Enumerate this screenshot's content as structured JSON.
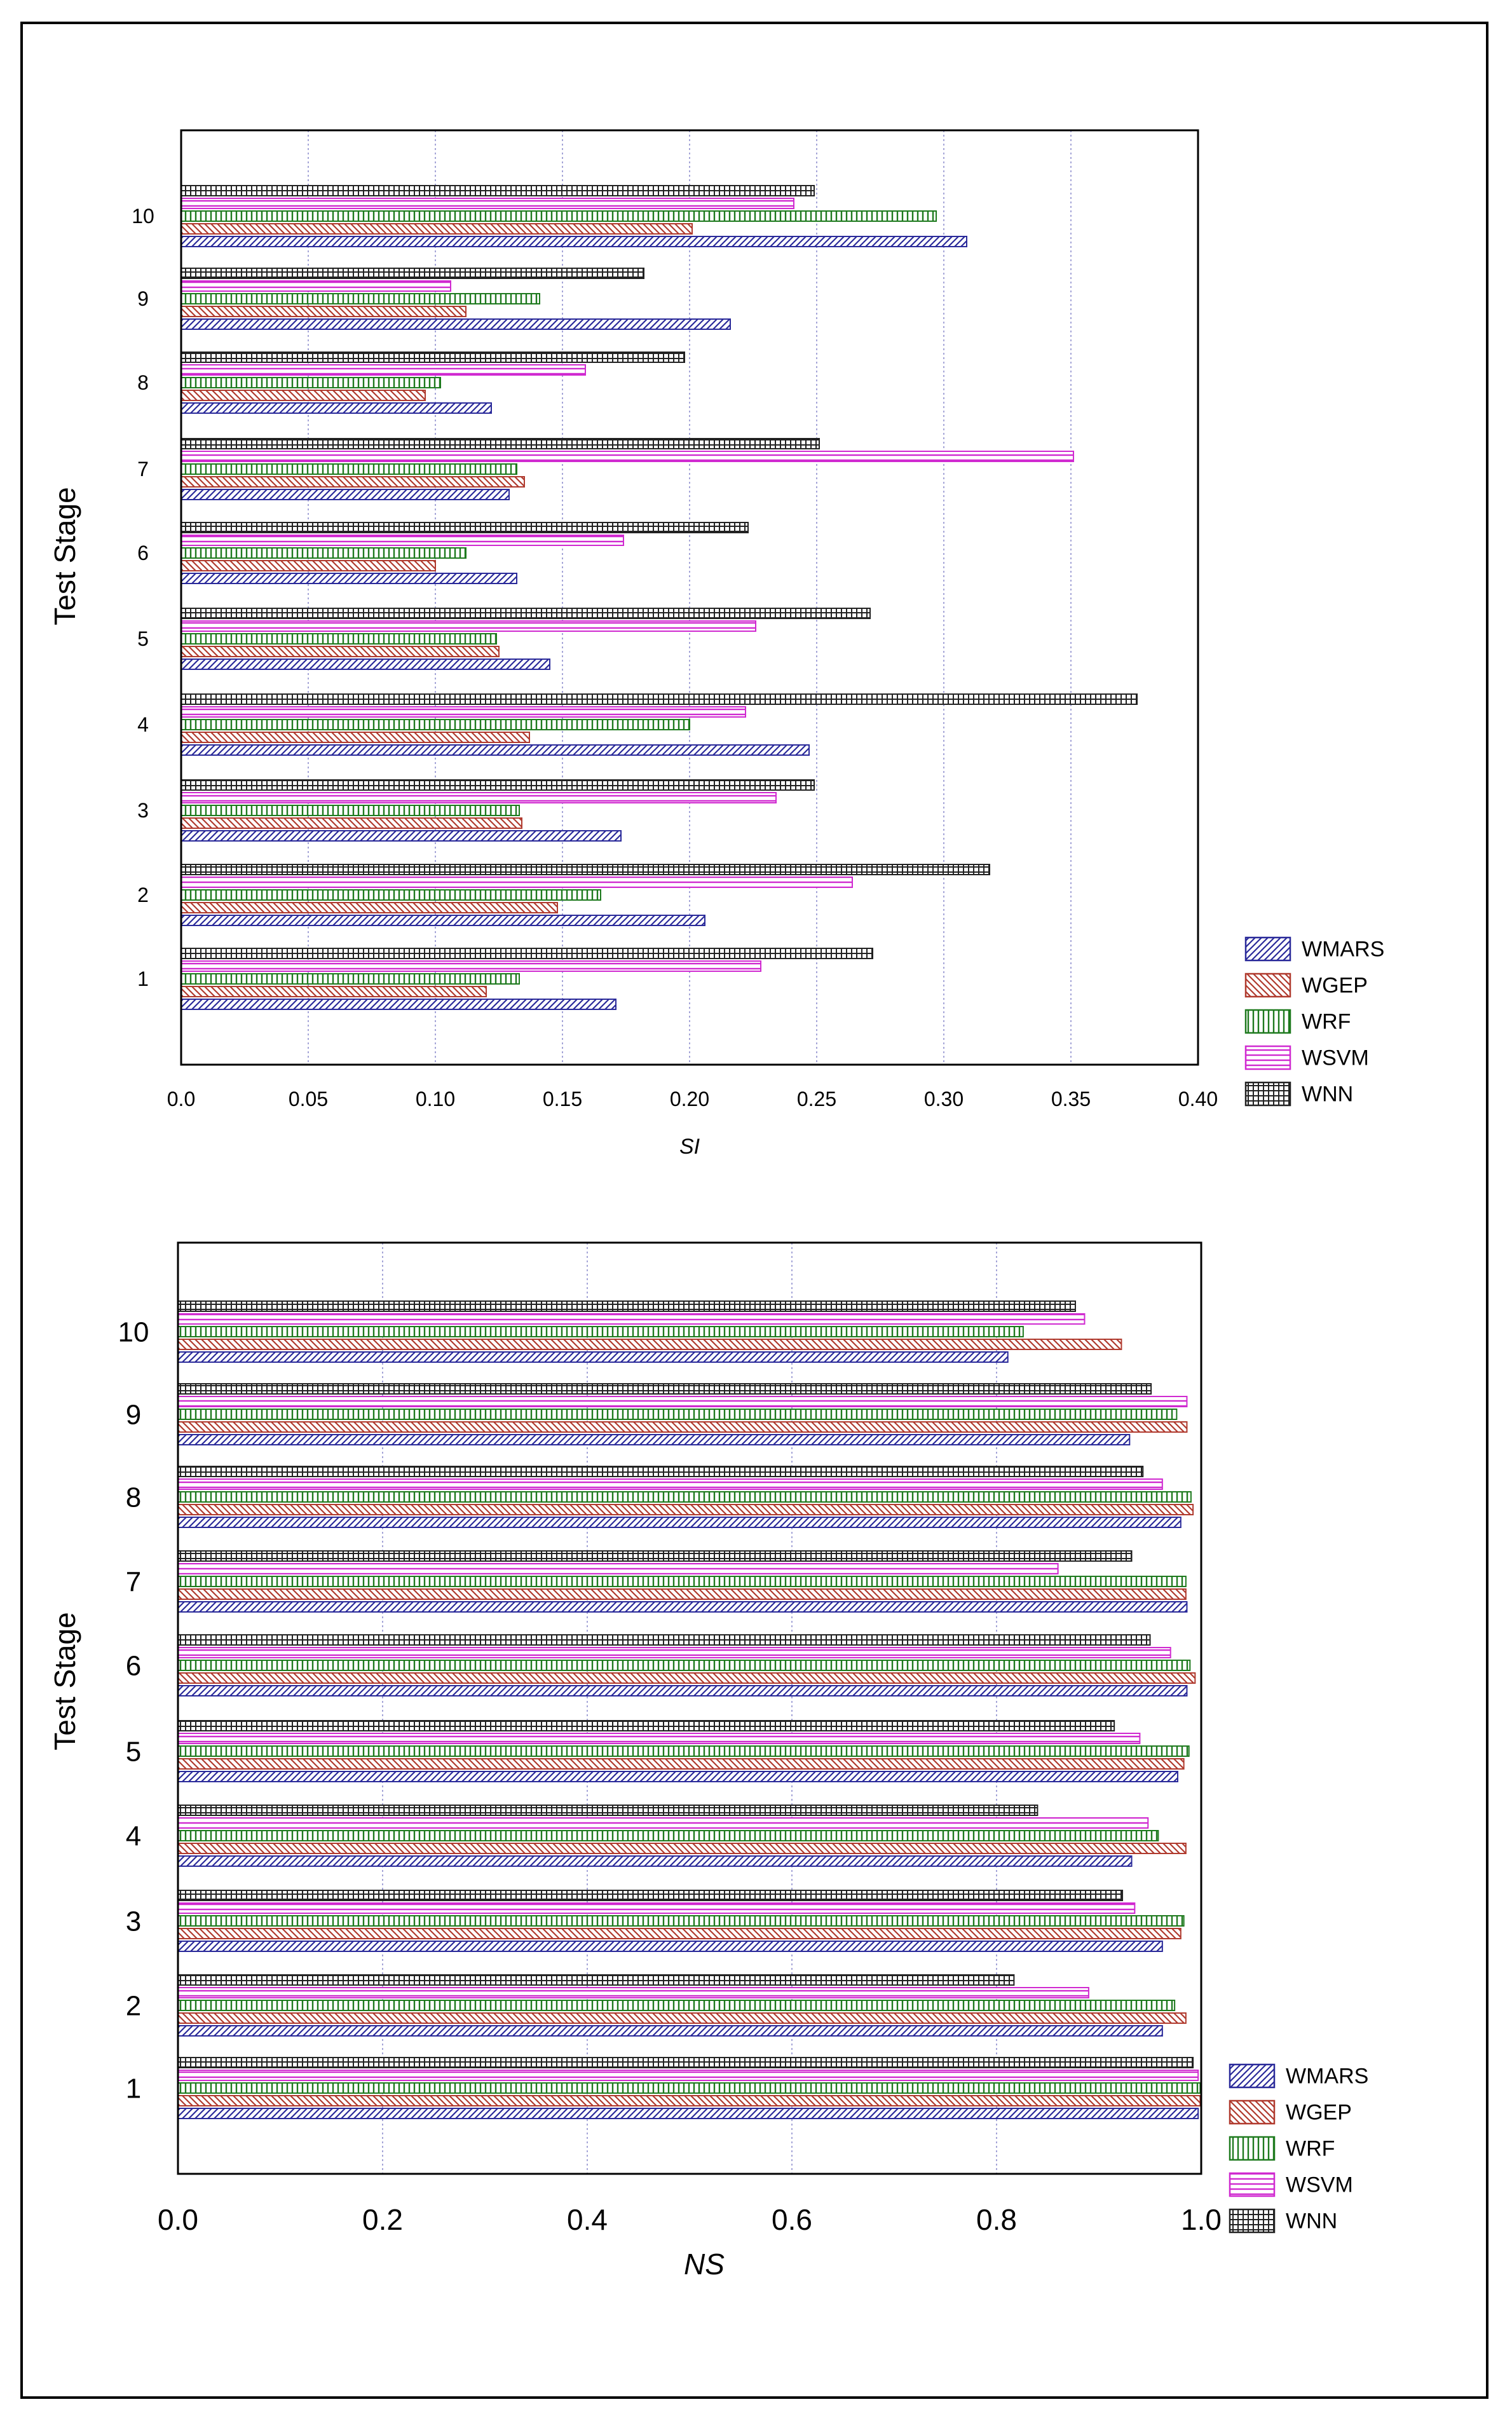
{
  "chart_data": [
    {
      "type": "bar",
      "orientation": "horizontal",
      "title": "",
      "xlabel": "SI",
      "ylabel": "Test Stage",
      "xlim": [
        0,
        0.4
      ],
      "xticks": [
        "0.0",
        "0.05",
        "0.10",
        "0.15",
        "0.20",
        "0.25",
        "0.30",
        "0.35",
        "0.40"
      ],
      "categories": [
        "1",
        "2",
        "3",
        "4",
        "5",
        "6",
        "7",
        "8",
        "9",
        "10"
      ],
      "grid": true,
      "legend_position": "bottom-right",
      "series": [
        {
          "name": "WMARS",
          "values": [
            0.171,
            0.206,
            0.173,
            0.247,
            0.145,
            0.132,
            0.129,
            0.122,
            0.216,
            0.309
          ]
        },
        {
          "name": "WGEP",
          "values": [
            0.12,
            0.148,
            0.134,
            0.137,
            0.125,
            0.1,
            0.135,
            0.096,
            0.112,
            0.201
          ]
        },
        {
          "name": "WRF",
          "values": [
            0.133,
            0.165,
            0.133,
            0.2,
            0.124,
            0.112,
            0.132,
            0.102,
            0.141,
            0.297
          ]
        },
        {
          "name": "WSVM",
          "values": [
            0.228,
            0.264,
            0.234,
            0.222,
            0.226,
            0.174,
            0.351,
            0.159,
            0.106,
            0.241
          ]
        },
        {
          "name": "WNN",
          "values": [
            0.272,
            0.318,
            0.249,
            0.376,
            0.271,
            0.223,
            0.251,
            0.198,
            0.182,
            0.249
          ]
        }
      ]
    },
    {
      "type": "bar",
      "orientation": "horizontal",
      "title": "",
      "xlabel": "NS",
      "ylabel": "Test Stage",
      "xlim": [
        0,
        1
      ],
      "xticks": [
        "0.0",
        "0.2",
        "0.4",
        "0.6",
        "0.8",
        "1.0"
      ],
      "categories": [
        "1",
        "2",
        "3",
        "4",
        "5",
        "6",
        "7",
        "8",
        "9",
        "10"
      ],
      "grid": true,
      "legend_position": "bottom-right",
      "series": [
        {
          "name": "WMARS",
          "values": [
            0.997,
            0.962,
            0.962,
            0.932,
            0.977,
            0.986,
            0.986,
            0.98,
            0.93,
            0.811
          ]
        },
        {
          "name": "WGEP",
          "values": [
            0.999,
            0.985,
            0.98,
            0.985,
            0.983,
            0.994,
            0.985,
            0.992,
            0.986,
            0.922
          ]
        },
        {
          "name": "WRF",
          "values": [
            0.999,
            0.974,
            0.983,
            0.958,
            0.988,
            0.989,
            0.985,
            0.99,
            0.976,
            0.826
          ]
        },
        {
          "name": "WSVM",
          "values": [
            0.997,
            0.89,
            0.935,
            0.948,
            0.94,
            0.97,
            0.86,
            0.962,
            0.986,
            0.886
          ]
        },
        {
          "name": "WNN",
          "values": [
            0.992,
            0.817,
            0.923,
            0.84,
            0.915,
            0.95,
            0.932,
            0.943,
            0.951,
            0.877
          ]
        }
      ]
    }
  ],
  "colors": {
    "WMARS": "#2a2a9a",
    "WGEP": "#b03a2e",
    "WRF": "#1e7a1e",
    "WSVM": "#d02ad0",
    "WNN": "#222222",
    "grid": "#8888cc"
  }
}
